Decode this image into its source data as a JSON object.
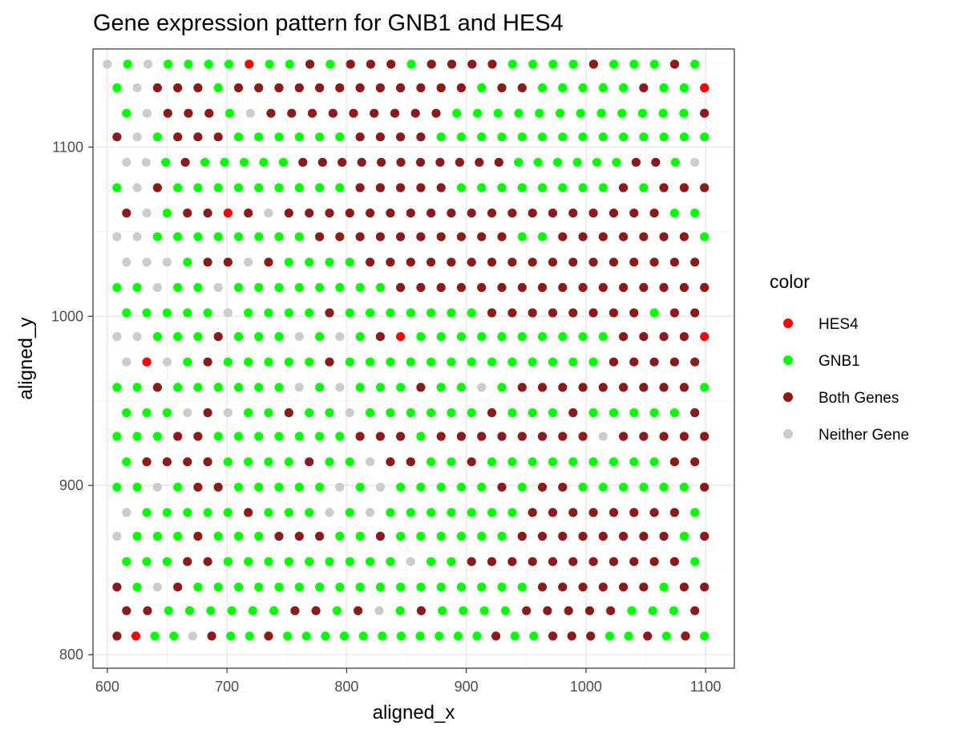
{
  "chart_data": {
    "type": "scatter",
    "title": "Gene expression pattern for GNB1 and HES4",
    "xlabel": "aligned_x",
    "ylabel": "aligned_y",
    "xlim": [
      588,
      1124
    ],
    "ylim": [
      792,
      1158
    ],
    "xticks": [
      600,
      700,
      800,
      900,
      1000,
      1100
    ],
    "yticks": [
      800,
      900,
      1000,
      1100
    ],
    "grid": true,
    "legend": {
      "title": "color",
      "position": "right",
      "entries": [
        {
          "label": "HES4",
          "color": "#ff0000"
        },
        {
          "label": "GNB1",
          "color": "#00ff00"
        },
        {
          "label": "Both Genes",
          "color": "#8b1a1a"
        },
        {
          "label": "Neither Gene",
          "color": "#cccccc"
        }
      ]
    },
    "rows": [
      {
        "y": 1149,
        "x0": 600,
        "x1": 1091,
        "pattern": "NGNGGGGHGGBGBBBGBBBBGGGGBGGGBG"
      },
      {
        "y": 1135,
        "x0": 608,
        "x1": 1099,
        "pattern": "GNBBBGBBBBBBBBBBBBGBBGGGGGBGGH"
      },
      {
        "y": 1120,
        "x0": 616,
        "x1": 1099,
        "pattern": "GNBBBGNBBBBBBBBBGGGGGGGGGGGGB"
      },
      {
        "y": 1106,
        "x0": 608,
        "x1": 1099,
        "pattern": "BNGBBBGGGGGGBBBBGGGGGGGGGGGGGG"
      },
      {
        "y": 1091,
        "x0": 616,
        "x1": 1091,
        "pattern": "NNGBGGGGGBBBBBBBBBBBGGGGGGBBGN"
      },
      {
        "y": 1076,
        "x0": 608,
        "x1": 1099,
        "pattern": "GNBGGGGGGGGGBBBBBGGGGGGGGBGBBB"
      },
      {
        "y": 1061,
        "x0": 616,
        "x1": 1091,
        "pattern": "BNGBBHBNBBBBBBBBBBBBBBBBBBBGG"
      },
      {
        "y": 1047,
        "x0": 608,
        "x1": 1099,
        "pattern": "NNGGGGGGGGBBBBBBBBBBGGBBBBBBBG"
      },
      {
        "y": 1032,
        "x0": 616,
        "x1": 1091,
        "pattern": "NNNGBBNBGGGGBBBBBBBBBBBBBBBBB"
      },
      {
        "y": 1017,
        "x0": 608,
        "x1": 1099,
        "pattern": "GGNGGNGGGGGGGGBBBBBBBBBBBBBBBB"
      },
      {
        "y": 1002,
        "x0": 616,
        "x1": 1091,
        "pattern": "GGGGGNGGGGBGGGGGGGBBBBBBBBGBB"
      },
      {
        "y": 988,
        "x0": 608,
        "x1": 1099,
        "pattern": "NNGGGBGGGNGNGBHGGGGGGGGGGBBBBH"
      },
      {
        "y": 973,
        "x0": 616,
        "x1": 1091,
        "pattern": "NHNGBGGGGGBGGGGGGGGGGGGGBBBBB"
      },
      {
        "y": 958,
        "x0": 608,
        "x1": 1099,
        "pattern": "GGBGGGGGGNGNGGGBGGNGBBBBBBBBBG"
      },
      {
        "y": 943,
        "x0": 616,
        "x1": 1091,
        "pattern": "GGGNBNGGBGGNGGGGGGBGGGBGGGGGB"
      },
      {
        "y": 929,
        "x0": 608,
        "x1": 1099,
        "pattern": "GGGBBGGGGGGGBBBGBBBBBBBBNBBBBB"
      },
      {
        "y": 914,
        "x0": 616,
        "x1": 1091,
        "pattern": "GBBBBGGGGBGGNBBGGBGGGGGGGGGBB"
      },
      {
        "y": 899,
        "x0": 608,
        "x1": 1099,
        "pattern": "GGNGBBGGGGGNGNGGGGGBGBBGGGGGGB"
      },
      {
        "y": 884,
        "x0": 616,
        "x1": 1091,
        "pattern": "NGGGGGBGGGNGNGGGGGGGBBBBBBBBG"
      },
      {
        "y": 870,
        "x0": 608,
        "x1": 1099,
        "pattern": "NGGGBGGGBBBGGBGGGGGGBBBBBBBBGB"
      },
      {
        "y": 855,
        "x0": 616,
        "x1": 1091,
        "pattern": "GGGBBGGGGGGGGGNGGBBBBBBBBBBBG"
      },
      {
        "y": 840,
        "x0": 608,
        "x1": 1099,
        "pattern": "BGNBGGGGGGGGGGGGGGGGGBBBBBBGBB"
      },
      {
        "y": 826,
        "x0": 616,
        "x1": 1091,
        "pattern": "BBGGGGGGBBGBNGBGGGGBBBBBGGGB"
      },
      {
        "y": 811,
        "x0": 608,
        "x1": 1099,
        "pattern": "BHGGNBGGBGGGGGGGGGGGBGGBBBGGBGBG"
      }
    ]
  }
}
